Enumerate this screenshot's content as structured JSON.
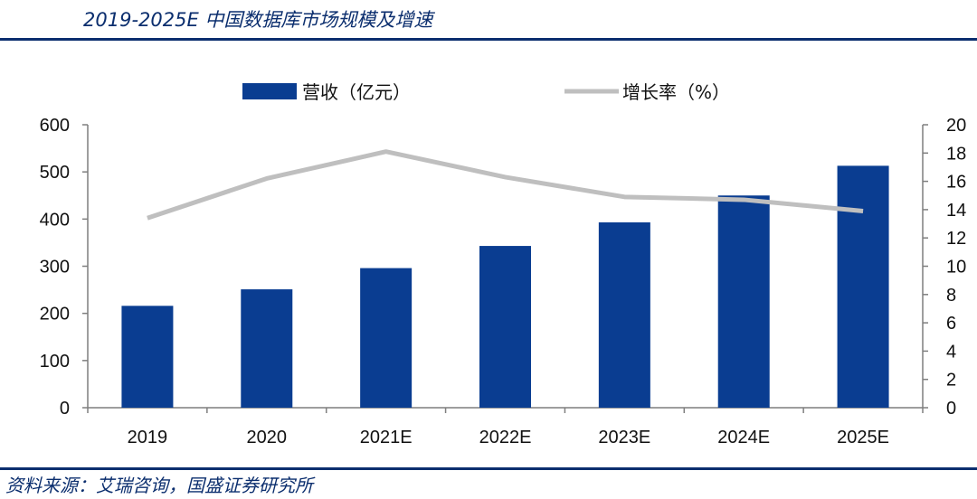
{
  "header": {
    "title": "2019-2025E 中国数据库市场规模及增速"
  },
  "footer": {
    "source": "资料来源：艾瑞咨询，国盛证券研究所"
  },
  "chart_data": {
    "type": "bar",
    "title": "2019-2025E 中国数据库市场规模及增速",
    "categories": [
      "2019",
      "2020",
      "2021E",
      "2022E",
      "2023E",
      "2024E",
      "2025E"
    ],
    "series": [
      {
        "name": "营收（亿元）",
        "type": "bar",
        "axis": "left",
        "values": [
          216,
          251,
          296,
          343,
          393,
          450,
          513
        ]
      },
      {
        "name": "增长率（%）",
        "type": "line",
        "axis": "right",
        "values": [
          13.4,
          16.2,
          18.1,
          16.3,
          14.9,
          14.7,
          13.9
        ]
      }
    ],
    "y_left": {
      "min": 0,
      "max": 600,
      "ticks": [
        "0",
        "100",
        "200",
        "300",
        "400",
        "500",
        "600"
      ]
    },
    "y_right": {
      "min": 0,
      "max": 20,
      "ticks": [
        "0",
        "2",
        "4",
        "6",
        "8",
        "10",
        "12",
        "14",
        "16",
        "18",
        "20"
      ]
    },
    "legend_position": "top-center",
    "grid": false,
    "colors": {
      "bar": "#0a3d91",
      "line": "#bfbfbf",
      "axis": "#7f7f7f"
    }
  }
}
